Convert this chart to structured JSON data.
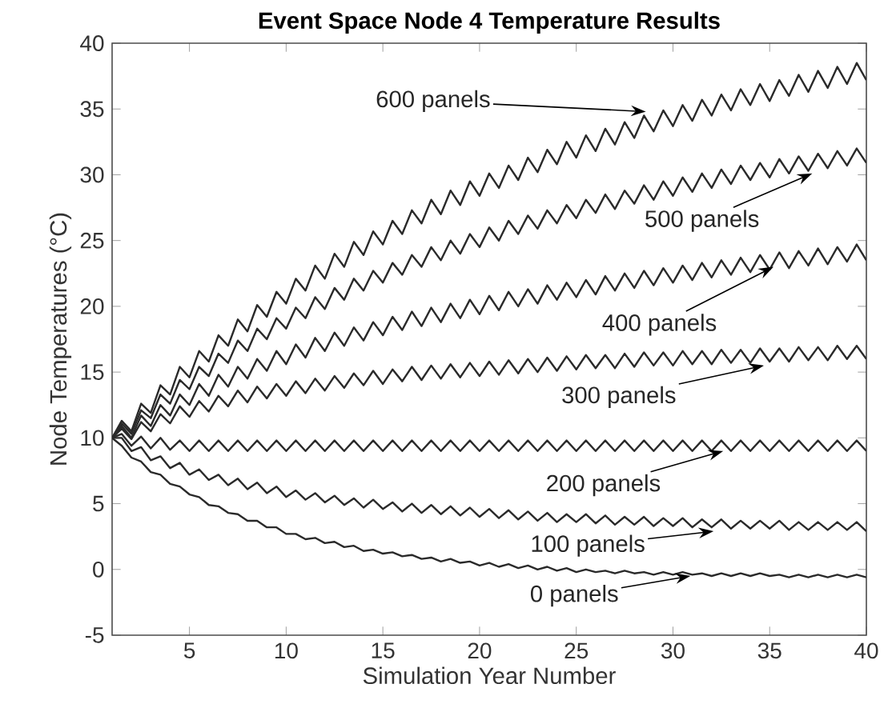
{
  "chart_data": {
    "type": "line",
    "title": "Event Space Node 4 Temperature Results",
    "xlabel": "Simulation Year Number",
    "ylabel": "Node Temperatures (°C)",
    "xlim": [
      1,
      40
    ],
    "xticks": [
      5,
      10,
      15,
      20,
      25,
      30,
      35,
      40
    ],
    "ylim": [
      -5,
      40
    ],
    "yticks": [
      -5,
      0,
      5,
      10,
      15,
      20,
      25,
      30,
      35,
      40
    ],
    "x": [
      1,
      1.5,
      2,
      2.5,
      3,
      3.5,
      4,
      4.5,
      5,
      5.5,
      6,
      6.5,
      7,
      7.5,
      8,
      8.5,
      9,
      9.5,
      10,
      10.5,
      11,
      11.5,
      12,
      12.5,
      13,
      13.5,
      14,
      14.5,
      15,
      15.5,
      16,
      16.5,
      17,
      17.5,
      18,
      18.5,
      19,
      19.5,
      20,
      20.5,
      21,
      21.5,
      22,
      22.5,
      23,
      23.5,
      24,
      24.5,
      25,
      25.5,
      26,
      26.5,
      27,
      27.5,
      28,
      28.5,
      29,
      29.5,
      30,
      30.5,
      31,
      31.5,
      32,
      32.5,
      33,
      33.5,
      34,
      34.5,
      35,
      35.5,
      36,
      36.5,
      37,
      37.5,
      38,
      38.5,
      39,
      39.5,
      40
    ],
    "series": [
      {
        "color": "#2a2a2a",
        "values": [
          10,
          11.3,
          10.5,
          12.6,
          11.9,
          14.0,
          13.3,
          15.4,
          14.6,
          16.6,
          15.8,
          17.8,
          17.0,
          19.0,
          18.1,
          20.1,
          19.2,
          21.1,
          20.2,
          22.1,
          21.2,
          23.1,
          22.1,
          24.0,
          23.0,
          24.9,
          23.9,
          25.7,
          24.7,
          26.5,
          25.5,
          27.3,
          26.3,
          28.1,
          27.0,
          28.8,
          27.7,
          29.5,
          28.4,
          30.1,
          29.0,
          30.7,
          29.6,
          31.3,
          30.2,
          31.9,
          30.8,
          32.5,
          31.3,
          33.0,
          31.8,
          33.5,
          32.3,
          34.0,
          32.8,
          34.5,
          33.3,
          34.9,
          33.7,
          35.3,
          34.1,
          35.7,
          34.5,
          36.1,
          34.9,
          36.5,
          35.3,
          36.9,
          35.6,
          37.2,
          36.0,
          37.6,
          36.3,
          37.9,
          36.6,
          38.2,
          36.9,
          38.5,
          37.2
        ]
      },
      {
        "color": "#2a2a2a",
        "values": [
          10,
          11.1,
          10.3,
          12.1,
          11.5,
          13.3,
          12.6,
          14.4,
          13.7,
          15.4,
          14.7,
          16.4,
          15.7,
          17.4,
          16.6,
          18.3,
          17.5,
          19.1,
          18.3,
          19.9,
          19.1,
          20.7,
          19.8,
          21.4,
          20.5,
          22.1,
          21.2,
          22.7,
          21.8,
          23.3,
          22.4,
          23.9,
          23.0,
          24.5,
          23.5,
          25.0,
          24.0,
          25.5,
          24.5,
          26.0,
          25.0,
          26.5,
          25.5,
          26.9,
          25.9,
          27.3,
          26.3,
          27.7,
          26.7,
          28.1,
          27.1,
          28.5,
          27.4,
          28.8,
          27.8,
          29.2,
          28.1,
          29.5,
          28.4,
          29.8,
          28.7,
          30.1,
          29.0,
          30.4,
          29.3,
          30.7,
          29.6,
          30.9,
          29.8,
          31.2,
          30.1,
          31.4,
          30.3,
          31.6,
          30.5,
          31.8,
          30.7,
          32.0,
          30.9
        ]
      },
      {
        "color": "#2a2a2a",
        "values": [
          10,
          10.9,
          10.0,
          11.7,
          10.9,
          12.5,
          11.7,
          13.3,
          12.5,
          14.1,
          13.2,
          14.8,
          13.9,
          15.4,
          14.5,
          16.0,
          15.1,
          16.6,
          15.6,
          17.1,
          16.1,
          17.6,
          16.6,
          18.0,
          17.0,
          18.4,
          17.4,
          18.8,
          17.8,
          19.2,
          18.2,
          19.6,
          18.5,
          19.9,
          18.8,
          20.2,
          19.1,
          20.5,
          19.4,
          20.8,
          19.7,
          21.1,
          20.0,
          21.3,
          20.2,
          21.6,
          20.5,
          21.8,
          20.7,
          22.0,
          20.9,
          22.3,
          21.2,
          22.5,
          21.4,
          22.7,
          21.6,
          22.9,
          21.8,
          23.1,
          22.0,
          23.3,
          22.2,
          23.5,
          22.4,
          23.7,
          22.6,
          23.9,
          22.8,
          24.1,
          22.9,
          24.2,
          23.1,
          24.4,
          23.2,
          24.5,
          23.4,
          24.7,
          23.5
        ]
      },
      {
        "color": "#2a2a2a",
        "values": [
          10,
          10.7,
          9.9,
          11.2,
          10.5,
          11.8,
          11.1,
          12.4,
          11.6,
          12.8,
          12.0,
          13.2,
          12.4,
          13.6,
          12.7,
          13.9,
          13.0,
          14.1,
          13.2,
          14.3,
          13.4,
          14.5,
          13.6,
          14.7,
          13.8,
          14.9,
          14.0,
          15.1,
          14.1,
          15.2,
          14.3,
          15.4,
          14.4,
          15.5,
          14.5,
          15.6,
          14.6,
          15.7,
          14.7,
          15.8,
          14.8,
          15.9,
          14.9,
          16.0,
          15.0,
          16.1,
          15.1,
          16.2,
          15.2,
          16.3,
          15.3,
          16.3,
          15.3,
          16.4,
          15.4,
          16.5,
          15.5,
          16.5,
          15.5,
          16.6,
          15.6,
          16.6,
          15.6,
          16.7,
          15.7,
          16.7,
          15.7,
          16.8,
          15.8,
          16.8,
          15.8,
          16.9,
          15.9,
          16.9,
          15.9,
          17.0,
          16.0,
          17.0,
          16.0
        ]
      },
      {
        "color": "#2a2a2a",
        "values": [
          10,
          10.3,
          9.4,
          10.1,
          9.2,
          10.0,
          9.1,
          9.8,
          9.0,
          9.8,
          9.0,
          9.8,
          9.0,
          9.8,
          9.0,
          9.8,
          9.0,
          9.8,
          9.0,
          9.8,
          9.0,
          9.8,
          9.0,
          9.8,
          9.0,
          9.8,
          9.0,
          9.8,
          9.0,
          9.8,
          9.0,
          9.8,
          9.0,
          9.8,
          9.0,
          9.8,
          9.0,
          9.8,
          9.0,
          9.8,
          9.0,
          9.8,
          9.0,
          9.8,
          9.0,
          9.8,
          9.0,
          9.8,
          9.0,
          9.8,
          9.0,
          9.8,
          9.0,
          9.8,
          9.0,
          9.8,
          9.0,
          9.8,
          9.0,
          9.8,
          9.0,
          9.8,
          9.0,
          9.8,
          9.0,
          9.8,
          9.0,
          9.8,
          9.0,
          9.8,
          9.0,
          9.8,
          9.0,
          9.8,
          9.0,
          9.8,
          9.0,
          9.8,
          9.0
        ]
      },
      {
        "color": "#2a2a2a",
        "values": [
          10,
          10.0,
          9.0,
          9.3,
          8.3,
          8.6,
          7.7,
          8.1,
          7.2,
          7.6,
          6.8,
          7.2,
          6.4,
          6.9,
          6.1,
          6.6,
          5.8,
          6.3,
          5.5,
          6.0,
          5.3,
          5.8,
          5.1,
          5.6,
          4.9,
          5.4,
          4.7,
          5.3,
          4.6,
          5.1,
          4.4,
          5.0,
          4.3,
          4.9,
          4.2,
          4.8,
          4.1,
          4.7,
          4.0,
          4.6,
          3.9,
          4.5,
          3.8,
          4.4,
          3.7,
          4.3,
          3.6,
          4.2,
          3.6,
          4.2,
          3.5,
          4.1,
          3.4,
          4.0,
          3.4,
          4.0,
          3.3,
          3.9,
          3.3,
          3.9,
          3.2,
          3.8,
          3.2,
          3.8,
          3.1,
          3.7,
          3.1,
          3.7,
          3.1,
          3.7,
          3.0,
          3.6,
          3.0,
          3.6,
          3.0,
          3.6,
          3.0,
          3.6,
          2.9
        ]
      },
      {
        "color": "#2a2a2a",
        "values": [
          10,
          9.4,
          8.5,
          8.2,
          7.4,
          7.2,
          6.5,
          6.3,
          5.7,
          5.5,
          4.9,
          4.8,
          4.3,
          4.2,
          3.7,
          3.7,
          3.2,
          3.2,
          2.7,
          2.7,
          2.3,
          2.4,
          2.0,
          2.1,
          1.7,
          1.8,
          1.4,
          1.5,
          1.2,
          1.3,
          1.0,
          1.1,
          0.8,
          0.9,
          0.6,
          0.8,
          0.5,
          0.6,
          0.3,
          0.5,
          0.2,
          0.4,
          0.1,
          0.3,
          0.0,
          0.2,
          -0.1,
          0.1,
          -0.2,
          0.0,
          -0.2,
          -0.1,
          -0.3,
          -0.1,
          -0.3,
          -0.2,
          -0.4,
          -0.2,
          -0.4,
          -0.2,
          -0.4,
          -0.3,
          -0.5,
          -0.3,
          -0.5,
          -0.3,
          -0.5,
          -0.3,
          -0.5,
          -0.4,
          -0.6,
          -0.4,
          -0.6,
          -0.4,
          -0.6,
          -0.4,
          -0.6,
          -0.4,
          -0.6
        ]
      }
    ],
    "annotations": [
      {
        "text": "600 panels",
        "x": 28.6,
        "y": 34.8
      },
      {
        "text": "500 panels",
        "x": 37.2,
        "y": 30.1
      },
      {
        "text": "400 panels",
        "x": 35.2,
        "y": 23.0
      },
      {
        "text": "300 panels",
        "x": 34.7,
        "y": 15.5
      },
      {
        "text": "200 panels",
        "x": 32.6,
        "y": 9.0
      },
      {
        "text": "100 panels",
        "x": 32.1,
        "y": 2.9
      },
      {
        "text": "0 panels",
        "x": 30.9,
        "y": -0.5
      }
    ]
  }
}
